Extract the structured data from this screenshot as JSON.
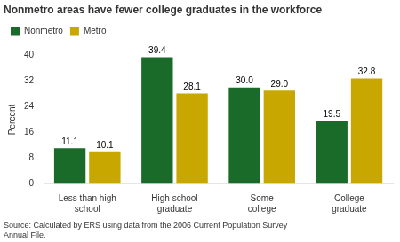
{
  "chart_data": {
    "type": "bar",
    "title": "Nonmetro areas have fewer college graduates in the workforce",
    "ylabel": "Percent",
    "source": "Source: Calculated by ERS using data from the 2006 Current Population Survey\nAnnual File.",
    "categories": [
      "Less than high\nschool",
      "High school\ngraduate",
      "Some\ncollege",
      "College\ngraduate"
    ],
    "series": [
      {
        "name": "Nonmetro",
        "color": "#1a6b2a",
        "values": [
          11.1,
          39.4,
          30.0,
          19.5
        ],
        "value_labels": [
          "11.1",
          "39.4",
          "30.0",
          "19.5"
        ]
      },
      {
        "name": "Metro",
        "color": "#c8a800",
        "values": [
          10.1,
          28.1,
          29.0,
          32.8
        ],
        "value_labels": [
          "10.1",
          "28.1",
          "29.0",
          "32.8"
        ]
      }
    ],
    "ylim": [
      0,
      40
    ],
    "yticks": [
      0,
      8,
      16,
      24,
      32,
      40
    ],
    "grid": false,
    "legend": "upper left",
    "data_labels": true
  }
}
